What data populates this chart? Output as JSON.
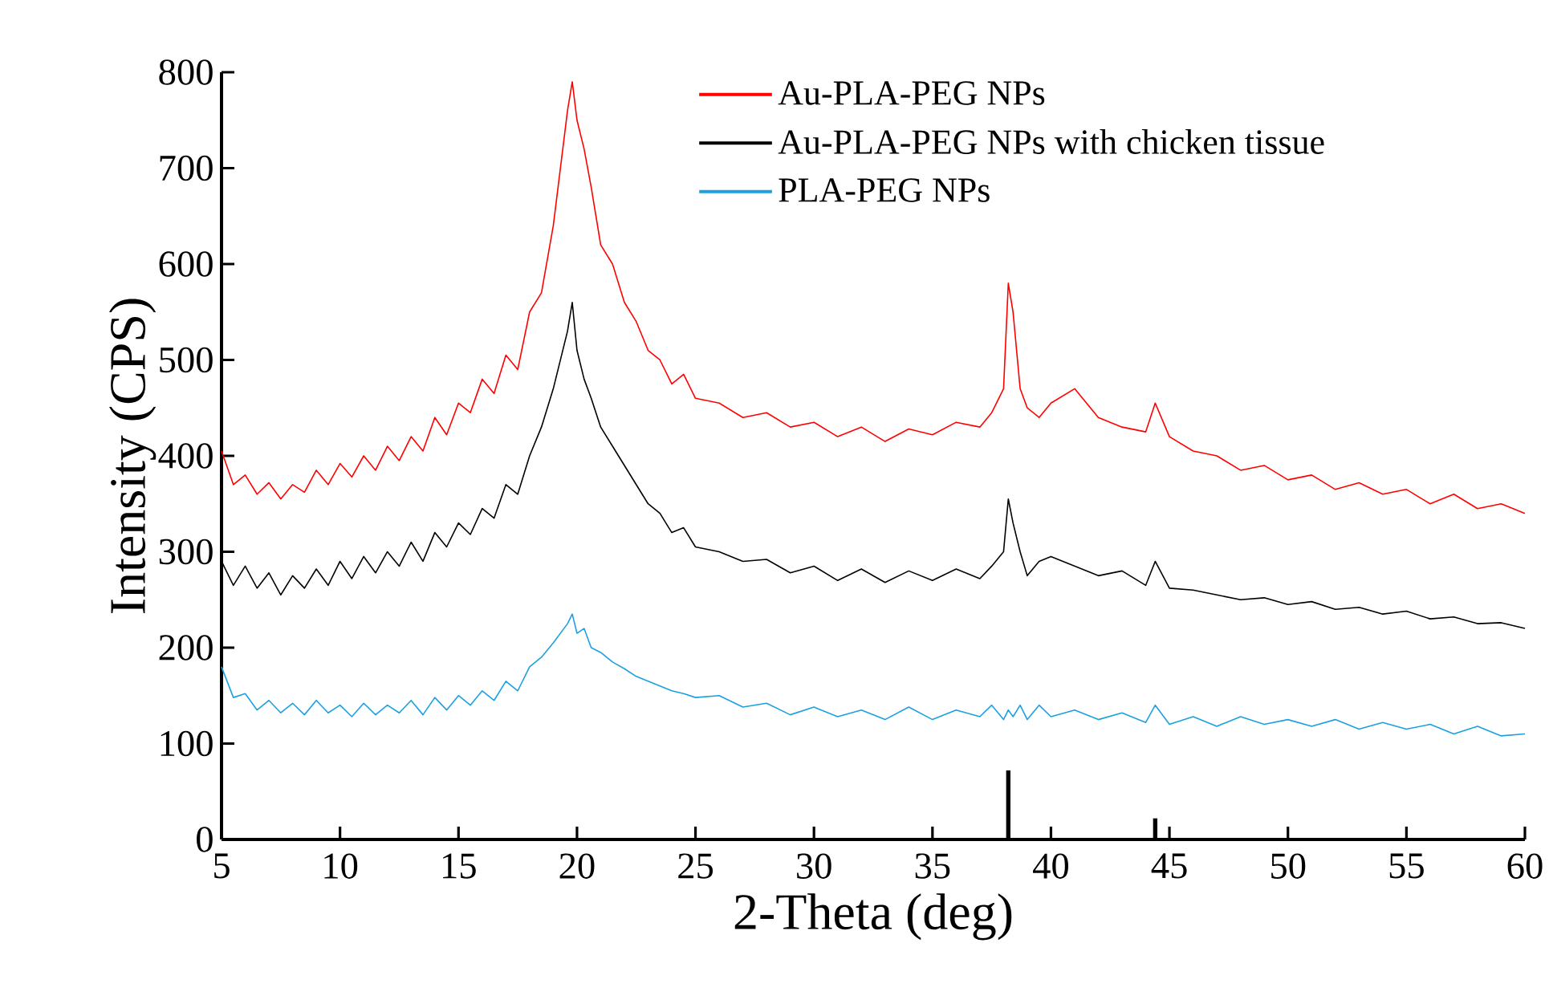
{
  "chart_data": {
    "type": "line",
    "xlabel": "2-Theta (deg)",
    "ylabel": "Intensity (CPS)",
    "xlim": [
      5,
      60
    ],
    "xticks": [
      5,
      10,
      15,
      20,
      25,
      30,
      35,
      40,
      45,
      50,
      55,
      60
    ],
    "ylim": [
      0,
      800
    ],
    "yticks": [
      0,
      100,
      200,
      300,
      400,
      500,
      600,
      700,
      800
    ],
    "legend": "top right",
    "marker": "none",
    "line_style": "solid",
    "series": [
      {
        "name": "Au-PLA-PEG NPs",
        "color": "#ff0000",
        "x": [
          5,
          5.5,
          6,
          6.5,
          7,
          7.5,
          8,
          8.5,
          9,
          9.5,
          10,
          10.5,
          11,
          11.5,
          12,
          12.5,
          13,
          13.5,
          14,
          14.5,
          15,
          15.5,
          16,
          16.5,
          17,
          17.5,
          18,
          18.5,
          19,
          19.3,
          19.6,
          19.8,
          20,
          20.3,
          20.6,
          21,
          21.5,
          22,
          22.5,
          23,
          23.5,
          24,
          24.5,
          25,
          26,
          27,
          28,
          29,
          30,
          31,
          32,
          33,
          34,
          35,
          36,
          37,
          37.5,
          38,
          38.2,
          38.4,
          38.7,
          39,
          39.5,
          40,
          41,
          42,
          43,
          44,
          44.4,
          45,
          46,
          47,
          48,
          49,
          50,
          51,
          52,
          53,
          54,
          55,
          56,
          57,
          58,
          59,
          60
        ],
        "values": [
          405,
          370,
          380,
          360,
          372,
          355,
          370,
          362,
          385,
          370,
          392,
          378,
          400,
          385,
          410,
          395,
          420,
          405,
          440,
          422,
          455,
          445,
          480,
          465,
          505,
          490,
          550,
          570,
          640,
          700,
          760,
          790,
          750,
          720,
          680,
          620,
          600,
          560,
          540,
          510,
          500,
          475,
          485,
          460,
          455,
          440,
          445,
          430,
          435,
          420,
          430,
          415,
          428,
          422,
          435,
          430,
          445,
          470,
          580,
          550,
          470,
          450,
          440,
          455,
          470,
          440,
          430,
          425,
          455,
          420,
          405,
          400,
          385,
          390,
          375,
          380,
          365,
          372,
          360,
          365,
          350,
          360,
          345,
          350,
          340
        ]
      },
      {
        "name": "Au-PLA-PEG NPs with chicken tissue",
        "color": "#000000",
        "x": [
          5,
          5.5,
          6,
          6.5,
          7,
          7.5,
          8,
          8.5,
          9,
          9.5,
          10,
          10.5,
          11,
          11.5,
          12,
          12.5,
          13,
          13.5,
          14,
          14.5,
          15,
          15.5,
          16,
          16.5,
          17,
          17.5,
          18,
          18.5,
          19,
          19.3,
          19.6,
          19.8,
          20,
          20.3,
          20.6,
          21,
          21.5,
          22,
          22.5,
          23,
          23.5,
          24,
          24.5,
          25,
          26,
          27,
          28,
          29,
          30,
          31,
          32,
          33,
          34,
          35,
          36,
          37,
          37.5,
          38,
          38.2,
          38.4,
          38.7,
          39,
          39.5,
          40,
          41,
          42,
          43,
          44,
          44.4,
          45,
          46,
          47,
          48,
          49,
          50,
          51,
          52,
          53,
          54,
          55,
          56,
          57,
          58,
          59,
          60
        ],
        "values": [
          290,
          265,
          285,
          262,
          278,
          255,
          275,
          262,
          282,
          265,
          290,
          272,
          295,
          278,
          300,
          285,
          310,
          290,
          320,
          305,
          330,
          318,
          345,
          335,
          370,
          360,
          400,
          430,
          470,
          500,
          530,
          560,
          510,
          480,
          460,
          430,
          410,
          390,
          370,
          350,
          340,
          320,
          325,
          305,
          300,
          290,
          292,
          278,
          285,
          270,
          282,
          268,
          280,
          270,
          282,
          272,
          285,
          300,
          355,
          330,
          300,
          275,
          290,
          295,
          285,
          275,
          280,
          265,
          290,
          262,
          260,
          255,
          250,
          252,
          245,
          248,
          240,
          242,
          235,
          238,
          230,
          232,
          225,
          226,
          220
        ]
      },
      {
        "name": "PLA-PEG NPs",
        "color": "#1ba1e2",
        "x": [
          5,
          5.5,
          6,
          6.5,
          7,
          7.5,
          8,
          8.5,
          9,
          9.5,
          10,
          10.5,
          11,
          11.5,
          12,
          12.5,
          13,
          13.5,
          14,
          14.5,
          15,
          15.5,
          16,
          16.5,
          17,
          17.5,
          18,
          18.5,
          19,
          19.3,
          19.6,
          19.8,
          20,
          20.3,
          20.6,
          21,
          21.5,
          22,
          22.5,
          23,
          23.5,
          24,
          24.5,
          25,
          26,
          27,
          28,
          29,
          30,
          31,
          32,
          33,
          34,
          35,
          36,
          37,
          37.5,
          38,
          38.2,
          38.4,
          38.7,
          39,
          39.5,
          40,
          41,
          42,
          43,
          44,
          44.4,
          45,
          46,
          47,
          48,
          49,
          50,
          51,
          52,
          53,
          54,
          55,
          56,
          57,
          58,
          59,
          60
        ],
        "values": [
          180,
          148,
          152,
          135,
          145,
          132,
          142,
          130,
          145,
          132,
          140,
          128,
          142,
          130,
          140,
          132,
          145,
          130,
          148,
          135,
          150,
          140,
          155,
          145,
          165,
          155,
          180,
          190,
          205,
          215,
          225,
          235,
          215,
          220,
          200,
          195,
          185,
          178,
          170,
          165,
          160,
          155,
          152,
          148,
          150,
          138,
          142,
          130,
          138,
          128,
          135,
          125,
          138,
          125,
          135,
          128,
          140,
          125,
          135,
          128,
          140,
          125,
          140,
          128,
          135,
          125,
          132,
          122,
          140,
          120,
          128,
          118,
          128,
          120,
          125,
          118,
          125,
          115,
          122,
          115,
          120,
          110,
          118,
          108,
          110
        ]
      },
      {
        "type": "bar",
        "color": "#000000",
        "x": [
          38.2,
          44.4
        ],
        "values": [
          72,
          22
        ]
      }
    ]
  }
}
